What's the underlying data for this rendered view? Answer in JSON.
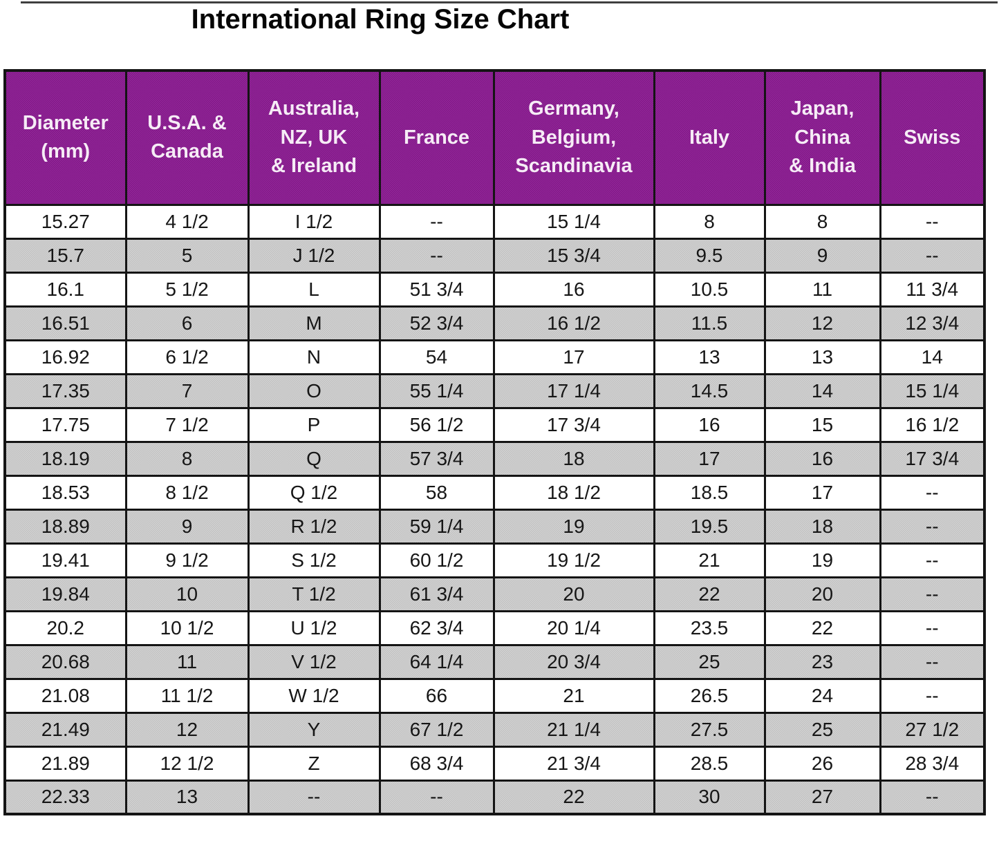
{
  "title": "International Ring Size Chart",
  "colors": {
    "header_bg": "#8b2090",
    "header_text": "#f6ecf6",
    "alt_row_bg": "#c9c9c9",
    "border": "#141414"
  },
  "table": {
    "columns": [
      {
        "id": "diameter-mm",
        "lines": [
          "Diameter",
          "(mm)"
        ]
      },
      {
        "id": "usa-canada",
        "lines": [
          "U.S.A. &",
          "Canada"
        ]
      },
      {
        "id": "australia-nz-uk-ireland",
        "lines": [
          "Australia,",
          "NZ, UK",
          "& Ireland"
        ]
      },
      {
        "id": "france",
        "lines": [
          "France"
        ]
      },
      {
        "id": "germany-belgium-scandinavia",
        "lines": [
          "Germany,",
          "Belgium,",
          "Scandinavia"
        ]
      },
      {
        "id": "italy",
        "lines": [
          "Italy"
        ]
      },
      {
        "id": "japan-china-india",
        "lines": [
          "Japan,",
          "China",
          "& India"
        ]
      },
      {
        "id": "swiss",
        "lines": [
          "Swiss"
        ]
      }
    ],
    "rows": [
      [
        "15.27",
        "4 1/2",
        "I 1/2",
        "--",
        "15 1/4",
        "8",
        "8",
        "--"
      ],
      [
        "15.7",
        "5",
        "J 1/2",
        "--",
        "15 3/4",
        "9.5",
        "9",
        "--"
      ],
      [
        "16.1",
        "5 1/2",
        "L",
        "51 3/4",
        "16",
        "10.5",
        "11",
        "11 3/4"
      ],
      [
        "16.51",
        "6",
        "M",
        "52 3/4",
        "16 1/2",
        "11.5",
        "12",
        "12 3/4"
      ],
      [
        "16.92",
        "6 1/2",
        "N",
        "54",
        "17",
        "13",
        "13",
        "14"
      ],
      [
        "17.35",
        "7",
        "O",
        "55 1/4",
        "17 1/4",
        "14.5",
        "14",
        "15 1/4"
      ],
      [
        "17.75",
        "7 1/2",
        "P",
        "56 1/2",
        "17 3/4",
        "16",
        "15",
        "16 1/2"
      ],
      [
        "18.19",
        "8",
        "Q",
        "57 3/4",
        "18",
        "17",
        "16",
        "17 3/4"
      ],
      [
        "18.53",
        "8 1/2",
        "Q 1/2",
        "58",
        "18 1/2",
        "18.5",
        "17",
        "--"
      ],
      [
        "18.89",
        "9",
        "R 1/2",
        "59 1/4",
        "19",
        "19.5",
        "18",
        "--"
      ],
      [
        "19.41",
        "9 1/2",
        "S 1/2",
        "60 1/2",
        "19 1/2",
        "21",
        "19",
        "--"
      ],
      [
        "19.84",
        "10",
        "T 1/2",
        "61 3/4",
        "20",
        "22",
        "20",
        "--"
      ],
      [
        "20.2",
        "10 1/2",
        "U 1/2",
        "62 3/4",
        "20 1/4",
        "23.5",
        "22",
        "--"
      ],
      [
        "20.68",
        "11",
        "V 1/2",
        "64 1/4",
        "20 3/4",
        "25",
        "23",
        "--"
      ],
      [
        "21.08",
        "11 1/2",
        "W 1/2",
        "66",
        "21",
        "26.5",
        "24",
        "--"
      ],
      [
        "21.49",
        "12",
        "Y",
        "67 1/2",
        "21 1/4",
        "27.5",
        "25",
        "27 1/2"
      ],
      [
        "21.89",
        "12 1/2",
        "Z",
        "68 3/4",
        "21 3/4",
        "28.5",
        "26",
        "28 3/4"
      ],
      [
        "22.33",
        "13",
        "--",
        "--",
        "22",
        "30",
        "27",
        "--"
      ]
    ]
  }
}
